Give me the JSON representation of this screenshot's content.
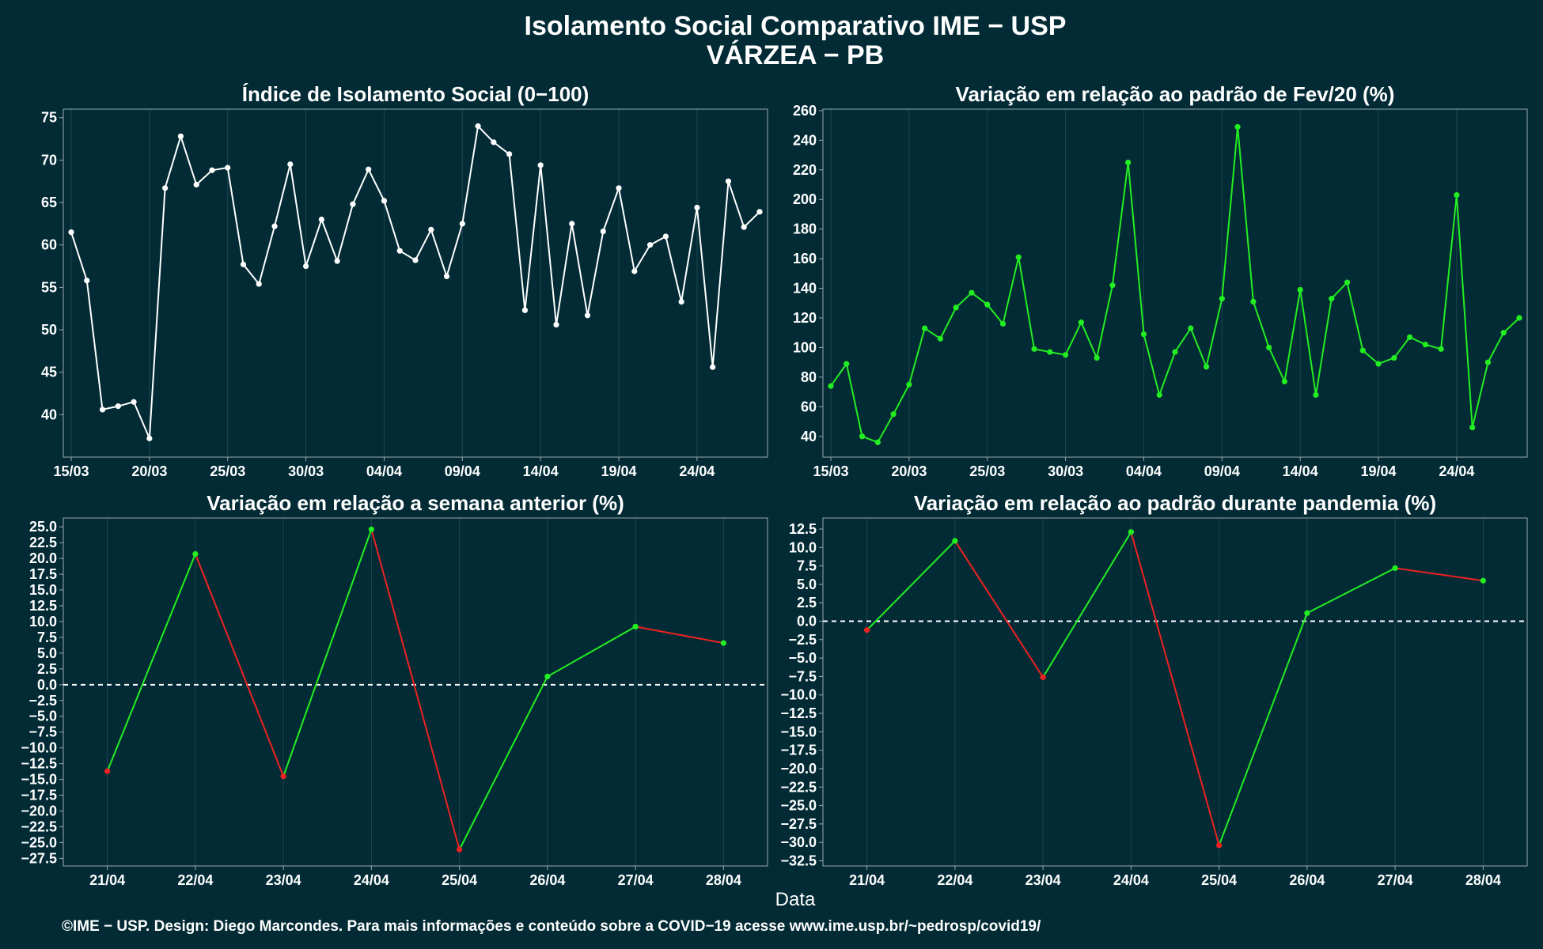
{
  "header": {
    "title_line1": "Isolamento Social Comparativo IME − USP",
    "title_line2": "VÁRZEA − PB"
  },
  "footer": {
    "xlabel": "Data",
    "credit": "©IME − USP. Design: Diego Marcondes. Para mais informações e conteúdo sobre a COVID−19 acesse www.ime.usp.br/~pedrosp/covid19/"
  },
  "colors": {
    "background": "#022b35",
    "white_series": "#ffffff",
    "positive": "#22ee22",
    "negative": "#ee2222",
    "zero_line": "#ffffff"
  },
  "chart_data": [
    {
      "id": "isolation-index",
      "type": "line",
      "title": "Índice de Isolamento Social (0−100)",
      "x_start": "15/03",
      "xtick_labels": [
        "15/03",
        "20/03",
        "25/03",
        "30/03",
        "04/04",
        "09/04",
        "14/04",
        "19/04",
        "24/04"
      ],
      "xtick_index": [
        0,
        5,
        10,
        15,
        20,
        25,
        30,
        35,
        40
      ],
      "ylim": [
        35,
        76
      ],
      "yticks": [
        40,
        45,
        50,
        55,
        60,
        65,
        70,
        75
      ],
      "color": "#ffffff",
      "values": [
        61.5,
        55.8,
        40.6,
        41.0,
        41.5,
        37.2,
        66.7,
        72.8,
        67.1,
        68.8,
        69.1,
        57.7,
        55.4,
        62.2,
        69.5,
        57.5,
        63.0,
        58.1,
        64.8,
        68.9,
        65.2,
        59.3,
        58.2,
        61.8,
        56.3,
        62.5,
        74.0,
        72.1,
        70.7,
        52.3,
        69.4,
        50.6,
        62.5,
        51.7,
        61.6,
        66.7,
        56.9,
        60.0,
        61.0,
        53.3,
        64.4,
        45.6,
        67.5,
        62.1,
        63.9
      ]
    },
    {
      "id": "variation-feb",
      "type": "line",
      "title": "Variação em relação ao padrão de Fev/20 (%)",
      "x_start": "15/03",
      "xtick_labels": [
        "15/03",
        "20/03",
        "25/03",
        "30/03",
        "04/04",
        "09/04",
        "14/04",
        "19/04",
        "24/04"
      ],
      "xtick_index": [
        0,
        5,
        10,
        15,
        20,
        25,
        30,
        35,
        40
      ],
      "ylim": [
        26,
        261
      ],
      "yticks": [
        40,
        60,
        80,
        100,
        120,
        140,
        160,
        180,
        200,
        220,
        240,
        260
      ],
      "color": "#22ee22",
      "values": [
        74,
        89,
        40,
        36,
        55,
        75,
        113,
        106,
        127,
        137,
        129,
        116,
        161,
        99,
        97,
        95,
        117,
        93,
        142,
        225,
        109,
        68,
        97,
        113,
        87,
        133,
        249,
        131,
        100,
        77,
        139,
        68,
        133,
        144,
        98,
        89,
        93,
        107,
        102,
        99,
        203,
        46,
        90,
        110,
        120
      ]
    },
    {
      "id": "variation-week",
      "type": "line",
      "title": "Variação em relação a semana anterior (%)",
      "categories": [
        "21/04",
        "22/04",
        "23/04",
        "24/04",
        "25/04",
        "26/04",
        "27/04",
        "28/04"
      ],
      "ylim": [
        -28.7,
        26.4
      ],
      "yticks": [
        25,
        22.5,
        20,
        17.5,
        15,
        12.5,
        10,
        7.5,
        5,
        2.5,
        0,
        -2.5,
        -5,
        -7.5,
        -10,
        -12.5,
        -15,
        -17.5,
        -20,
        -22.5,
        -25,
        -27.5
      ],
      "ytick_labels": [
        "25.0",
        "22.5",
        "20.0",
        "17.5",
        "15.0",
        "12.5",
        "10.0",
        "7.5",
        "5.0",
        "2.5",
        "0.0",
        "−2.5",
        "−5.0",
        "−7.5",
        "−10.0",
        "−12.5",
        "−15.0",
        "−17.5",
        "−20.0",
        "−22.5",
        "−25.0",
        "−27.5"
      ],
      "values": [
        -13.7,
        20.7,
        -14.5,
        24.6,
        -26.1,
        1.3,
        9.2,
        6.6
      ],
      "reference_line": 0
    },
    {
      "id": "variation-pandemic",
      "type": "line",
      "title": "Variação em relação ao padrão durante pandemia (%)",
      "categories": [
        "21/04",
        "22/04",
        "23/04",
        "24/04",
        "25/04",
        "26/04",
        "27/04",
        "28/04"
      ],
      "ylim": [
        -33.2,
        14.0
      ],
      "yticks": [
        12.5,
        10,
        7.5,
        5,
        2.5,
        0,
        -2.5,
        -5,
        -7.5,
        -10,
        -12.5,
        -15,
        -17.5,
        -20,
        -22.5,
        -25,
        -27.5,
        -30,
        -32.5
      ],
      "ytick_labels": [
        "12.5",
        "10.0",
        "7.5",
        "5.0",
        "2.5",
        "0.0",
        "−2.5",
        "−5.0",
        "−7.5",
        "−10.0",
        "−12.5",
        "−15.0",
        "−17.5",
        "−20.0",
        "−22.5",
        "−25.0",
        "−27.5",
        "−30.0",
        "−32.5"
      ],
      "values": [
        -1.2,
        10.9,
        -7.6,
        12.1,
        -30.4,
        1.1,
        7.2,
        5.5
      ],
      "reference_line": 0
    }
  ]
}
